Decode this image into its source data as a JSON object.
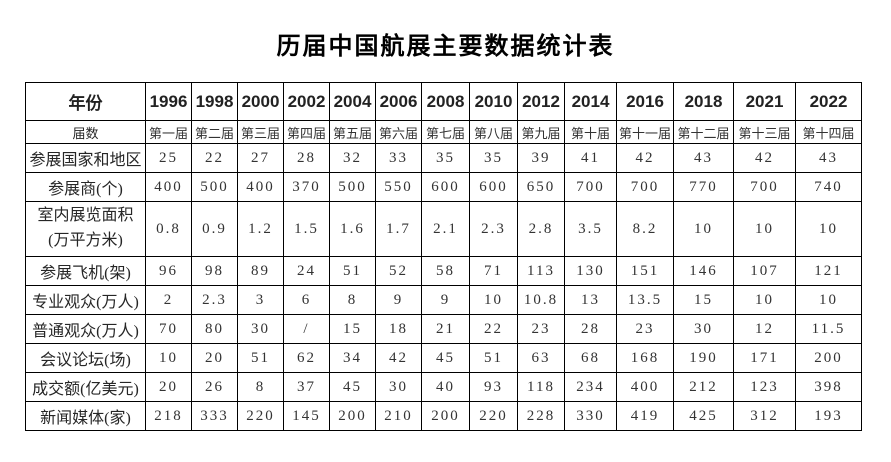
{
  "title": "历届中国航展主要数据统计表",
  "colors": {
    "background": "#ffffff",
    "text": "#1f1f1f",
    "border": "#000000"
  },
  "table": {
    "header": {
      "label": "年份",
      "years": [
        "1996",
        "1998",
        "2000",
        "2002",
        "2004",
        "2006",
        "2008",
        "2010",
        "2012",
        "2014",
        "2016",
        "2018",
        "2021",
        "2022"
      ]
    },
    "rows": [
      {
        "label": "届数",
        "values": [
          "第一届",
          "第二届",
          "第三届",
          "第四届",
          "第五届",
          "第六届",
          "第七届",
          "第八届",
          "第九届",
          "第十届",
          "第十一届",
          "第十二届",
          "第十三届",
          "第十四届"
        ]
      },
      {
        "label": "参展国家和地区",
        "values": [
          "25",
          "22",
          "27",
          "28",
          "32",
          "33",
          "35",
          "35",
          "39",
          "41",
          "42",
          "43",
          "42",
          "43"
        ]
      },
      {
        "label": "参展商(个)",
        "values": [
          "400",
          "500",
          "400",
          "370",
          "500",
          "550",
          "600",
          "600",
          "650",
          "700",
          "700",
          "770",
          "700",
          "740"
        ]
      },
      {
        "label": "室内展览面积",
        "label2": "(万平方米)",
        "values": [
          "0.8",
          "0.9",
          "1.2",
          "1.5",
          "1.6",
          "1.7",
          "2.1",
          "2.3",
          "2.8",
          "3.5",
          "8.2",
          "10",
          "10",
          "10"
        ]
      },
      {
        "label": "参展飞机(架)",
        "values": [
          "96",
          "98",
          "89",
          "24",
          "51",
          "52",
          "58",
          "71",
          "113",
          "130",
          "151",
          "146",
          "107",
          "121"
        ]
      },
      {
        "label": "专业观众(万人)",
        "values": [
          "2",
          "2.3",
          "3",
          "6",
          "8",
          "9",
          "9",
          "10",
          "10.8",
          "13",
          "13.5",
          "15",
          "10",
          "10"
        ]
      },
      {
        "label": "普通观众(万人)",
        "values": [
          "70",
          "80",
          "30",
          "/",
          "15",
          "18",
          "21",
          "22",
          "23",
          "28",
          "23",
          "30",
          "12",
          "11.5"
        ]
      },
      {
        "label": "会议论坛(场)",
        "values": [
          "10",
          "20",
          "51",
          "62",
          "34",
          "42",
          "45",
          "51",
          "63",
          "68",
          "168",
          "190",
          "171",
          "200"
        ]
      },
      {
        "label": "成交额(亿美元)",
        "values": [
          "20",
          "26",
          "8",
          "37",
          "45",
          "30",
          "40",
          "93",
          "118",
          "234",
          "400",
          "212",
          "123",
          "398"
        ]
      },
      {
        "label": "新闻媒体(家)",
        "values": [
          "218",
          "333",
          "220",
          "145",
          "200",
          "210",
          "200",
          "220",
          "228",
          "330",
          "419",
          "425",
          "312",
          "193"
        ]
      }
    ]
  }
}
